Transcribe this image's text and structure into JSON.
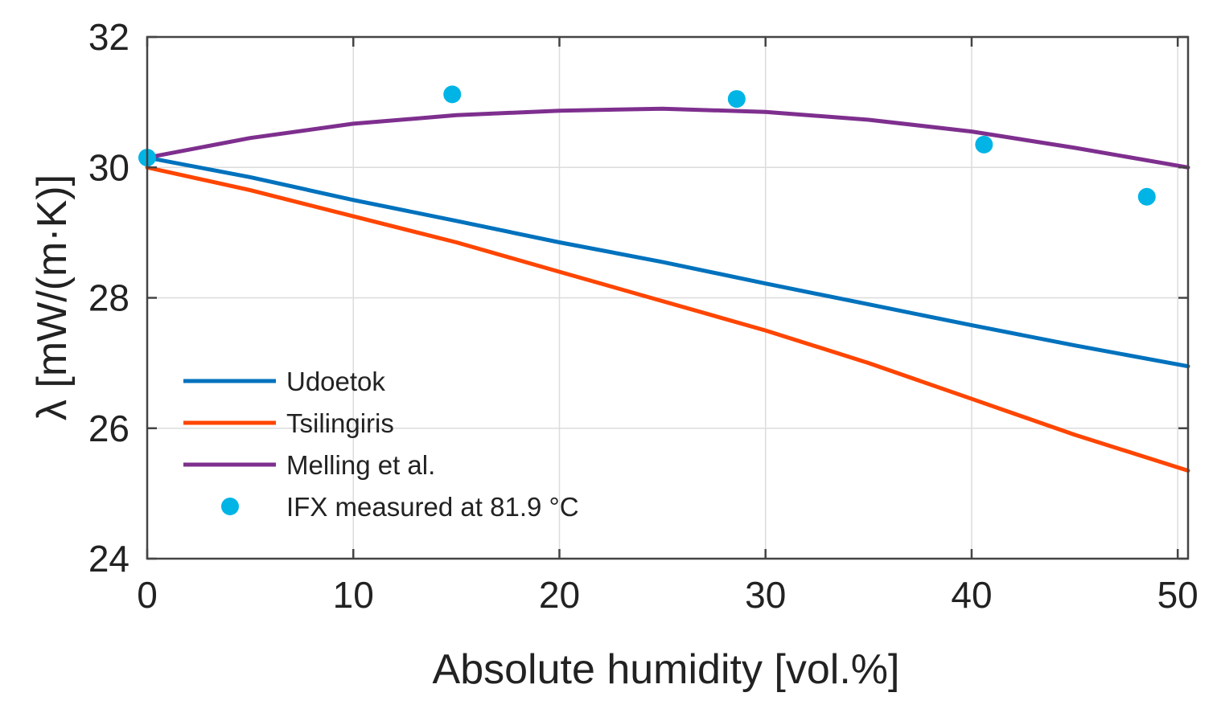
{
  "chart_data": {
    "type": "line",
    "title": "",
    "xlabel": "Absolute humidity [vol.%]",
    "ylabel": "λ [mW/(m·K)]",
    "xlim": [
      0,
      50.5
    ],
    "ylim": [
      24,
      32
    ],
    "xticks": [
      0,
      10,
      20,
      30,
      40,
      50
    ],
    "yticks": [
      24,
      26,
      28,
      30,
      32
    ],
    "grid": true,
    "legend_position": "bottom-left",
    "series": [
      {
        "name": "Udoetok",
        "kind": "line",
        "color": "#0072BD",
        "x": [
          0,
          5,
          10,
          15,
          20,
          25,
          30,
          35,
          40,
          45,
          50.5
        ],
        "y": [
          30.15,
          29.85,
          29.5,
          29.18,
          28.85,
          28.55,
          28.22,
          27.9,
          27.58,
          27.27,
          26.95
        ]
      },
      {
        "name": "Tsilingiris",
        "kind": "line",
        "color": "#FF4500",
        "x": [
          0,
          5,
          10,
          15,
          20,
          25,
          30,
          35,
          40,
          45,
          50.5
        ],
        "y": [
          30.0,
          29.65,
          29.25,
          28.85,
          28.4,
          27.95,
          27.5,
          27.0,
          26.45,
          25.9,
          25.35
        ]
      },
      {
        "name": "Melling et al.",
        "kind": "line",
        "color": "#7E2F8E",
        "x": [
          0,
          5,
          10,
          15,
          20,
          25,
          30,
          35,
          40,
          45,
          50.5
        ],
        "y": [
          30.15,
          30.45,
          30.67,
          30.8,
          30.87,
          30.9,
          30.85,
          30.73,
          30.55,
          30.3,
          30.0
        ]
      },
      {
        "name": "IFX measured at 81.9 °C",
        "kind": "scatter",
        "color": "#00B4E6",
        "x": [
          0,
          14.8,
          28.6,
          40.6,
          48.5
        ],
        "y": [
          30.15,
          31.12,
          31.05,
          30.35,
          29.55
        ]
      }
    ]
  }
}
